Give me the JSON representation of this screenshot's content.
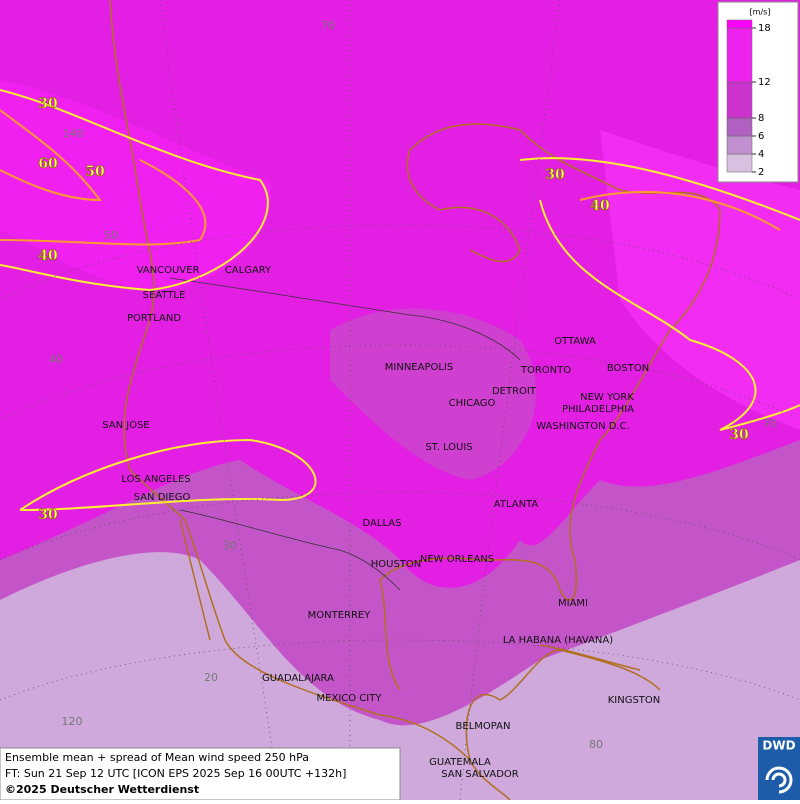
{
  "map": {
    "cities": [
      "VANCOUVER",
      "CALGARY",
      "SEATTLE",
      "PORTLAND",
      "SAN JOSE",
      "LOS ANGELES",
      "SAN DIEGO",
      "MINNEAPOLIS",
      "DETROIT",
      "TORONTO",
      "OTTAWA",
      "BOSTON",
      "NEW YORK",
      "PHILADELPHIA",
      "WASHINGTON D.C.",
      "CHICAGO",
      "ST. LOUIS",
      "ATLANTA",
      "DALLAS",
      "HOUSTON",
      "NEW ORLEANS",
      "MIAMI",
      "MONTERREY",
      "LA HABANA (HAVANA)",
      "GUADALAJARA",
      "MEXICO CITY",
      "KINGSTON",
      "BELMOPAN",
      "GUATEMALA",
      "SAN SALVADOR"
    ],
    "contour_labels": [
      "30",
      "50",
      "60",
      "40",
      "30",
      "40",
      "30",
      "30"
    ],
    "grid_labels": [
      "70",
      "140",
      "50",
      "40",
      "30",
      "20",
      "120",
      "80",
      "70"
    ],
    "legend": {
      "unit": "[m/s]",
      "ticks": [
        2,
        4,
        6,
        8,
        12,
        18
      ]
    },
    "caption": [
      "Ensemble mean + spread of Mean wind speed 250 hPa",
      "FT: Sun 21 Sep 12 UTC [ICON EPS 2025 Sep 16 00UTC +132h]",
      "©2025 Deutscher Wetterdienst"
    ],
    "logo": "DWD"
  }
}
